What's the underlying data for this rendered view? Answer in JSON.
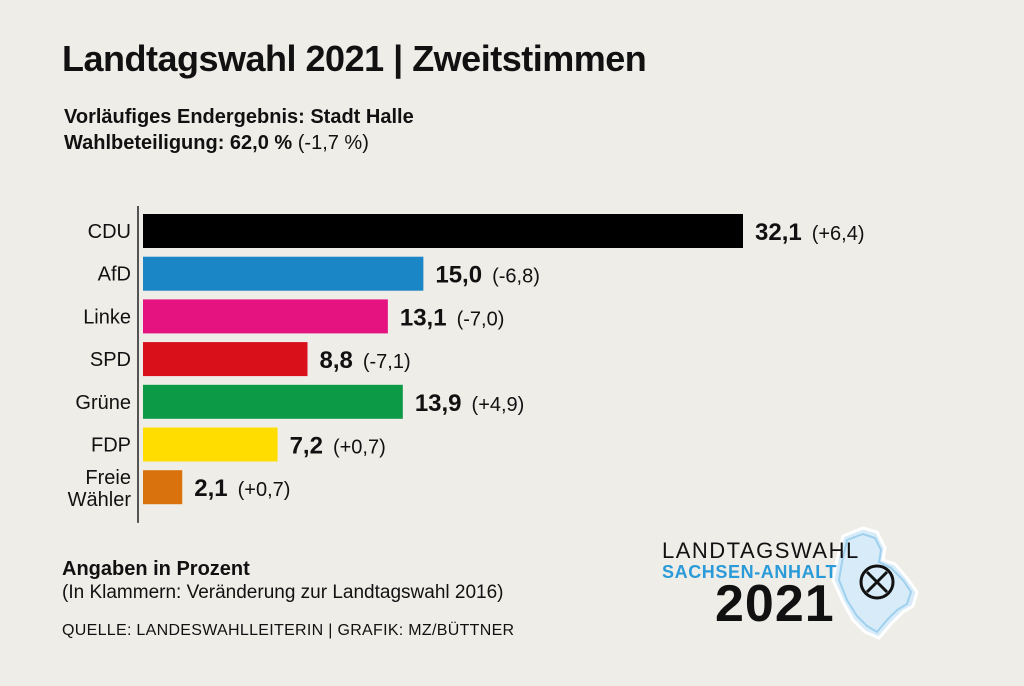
{
  "header": {
    "title": "Landtagswahl 2021 | Zweitstimmen",
    "subtitle_line1": "Vorläufiges Endergebnis: Stadt Halle",
    "turnout_label": "Wahlbeteiligung: 62,0 %",
    "turnout_change": "(-1,7 %)"
  },
  "chart_data": {
    "type": "bar",
    "orientation": "horizontal",
    "title": "Landtagswahl 2021 | Zweitstimmen",
    "unit": "Prozent",
    "categories": [
      "CDU",
      "AfD",
      "Linke",
      "SPD",
      "Grüne",
      "FDP",
      "Freie Wähler"
    ],
    "category_lines": [
      [
        "CDU"
      ],
      [
        "AfD"
      ],
      [
        "Linke"
      ],
      [
        "SPD"
      ],
      [
        "Grüne"
      ],
      [
        "FDP"
      ],
      [
        "Freie",
        "Wähler"
      ]
    ],
    "values": [
      32.1,
      15.0,
      13.1,
      8.8,
      13.9,
      7.2,
      2.1
    ],
    "value_labels": [
      "32,1",
      "15,0",
      "13,1",
      "8,8",
      "13,9",
      "7,2",
      "2,1"
    ],
    "change_labels": [
      "(+6,4)",
      "(-6,8)",
      "(-7,0)",
      "(-7,1)",
      "(+4,9)",
      "(+0,7)",
      "(+0,7)"
    ],
    "colors": [
      "#000000",
      "#1b86c6",
      "#e5137f",
      "#d90f19",
      "#0d9a46",
      "#ffdd00",
      "#d9720c"
    ],
    "xlim": [
      0,
      32.1
    ]
  },
  "footer": {
    "unit_note": "Angaben in Prozent",
    "change_note": "(In Klammern: Veränderung zur Landtagswahl 2016)",
    "source": "QUELLE: LANDESWAHLLEITERIN | GRAFIK: MZ/BÜTTNER"
  },
  "logo": {
    "line1": "LANDTAGSWAHL",
    "line2": "SACHSEN-ANHALT",
    "line3": "2021",
    "accent_color": "#2a9ad8"
  }
}
